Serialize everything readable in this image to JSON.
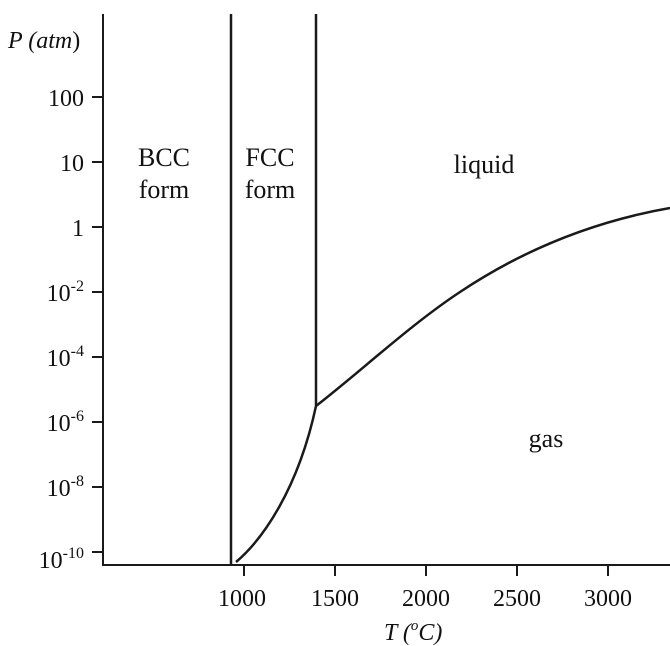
{
  "diagram": {
    "y_axis_title": {
      "main": "P (atm",
      "close": ")"
    },
    "x_axis_title": {
      "prefix": "T (",
      "superscript": "o",
      "suffix": "C)"
    },
    "x_ticks": [
      "1000",
      "1500",
      "2000",
      "2500",
      "3000"
    ],
    "y_ticks": [
      {
        "base": "100",
        "exp": ""
      },
      {
        "base": "10",
        "exp": ""
      },
      {
        "base": "1",
        "exp": ""
      },
      {
        "base": "10",
        "exp": "-2"
      },
      {
        "base": "10",
        "exp": "-4"
      },
      {
        "base": "10",
        "exp": "-6"
      },
      {
        "base": "10",
        "exp": "-8"
      },
      {
        "base": "10",
        "exp": "-10"
      }
    ],
    "regions": {
      "bcc": [
        "BCC",
        "form"
      ],
      "fcc": [
        "FCC",
        "form"
      ],
      "liquid": "liquid",
      "gas": "gas"
    },
    "colors": {
      "line": "#1a1a1a",
      "text": "#111111"
    }
  }
}
